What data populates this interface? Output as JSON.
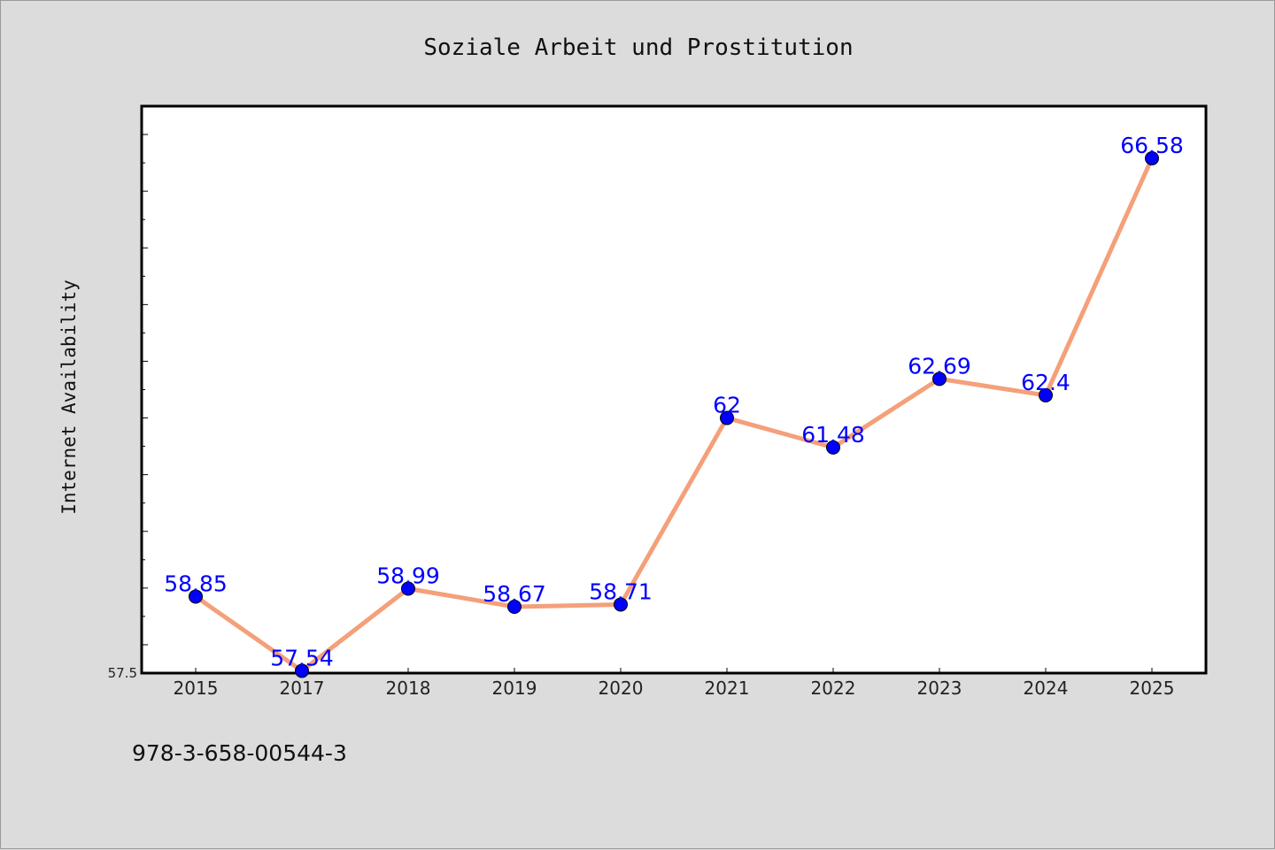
{
  "chart_data": {
    "type": "line",
    "title": "Soziale Arbeit und Prostitution",
    "xlabel": "",
    "ylabel": "Internet Availability",
    "categories": [
      "2015",
      "2017",
      "2018",
      "2019",
      "2020",
      "2021",
      "2022",
      "2023",
      "2024",
      "2025"
    ],
    "series": [
      {
        "values": [
          58.85,
          57.54,
          58.99,
          58.67,
          58.71,
          62,
          61.48,
          62.69,
          62.4,
          66.58
        ],
        "data_labels": [
          "58.85",
          "57.54",
          "58.99",
          "58.67",
          "58.71",
          "62",
          "61.48",
          "62.69",
          "62.4",
          "66.58"
        ]
      }
    ],
    "y_tick_labels": [
      "57.5"
    ],
    "ylim": [
      57.5,
      67.5
    ],
    "grid": false,
    "legend": "none",
    "colors": {
      "line": "#f4a07a",
      "marker": "#0000ff",
      "data_label": "#0000ff",
      "plot_background": "#ffffff",
      "figure_background": "#dcdcdc"
    }
  },
  "footer": {
    "isbn": "978-3-658-00544-3"
  }
}
